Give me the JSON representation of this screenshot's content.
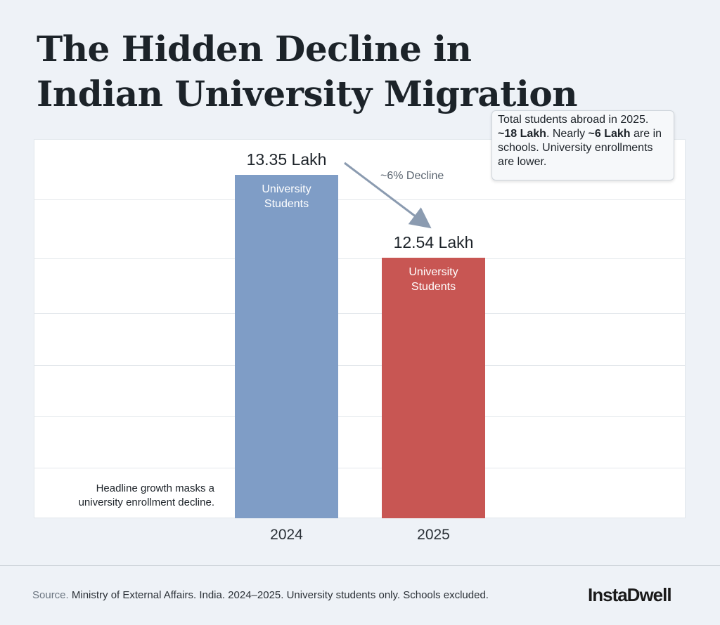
{
  "title": "The Hidden Decline in Indian University Migration",
  "annotation_box": {
    "pre": "Total students abroad in 2025. ",
    "b1": "~18 Lakh",
    "mid": ". Nearly ",
    "b2": "~6 Lakh",
    "post": " are in schools. University enrollments are lower."
  },
  "decline_label": "~6% Decline",
  "callout": "Headline growth masks a university enrollment decline.",
  "source_prefix": "Source.",
  "source": " Ministry of External Affairs. India. 2024–2025. University students only. Schools excluded.",
  "logo": "InstaDwell",
  "chart_data": {
    "type": "bar",
    "categories": [
      "2024",
      "2025"
    ],
    "values": [
      13.35,
      12.54
    ],
    "unit": "Lakh",
    "data_labels": [
      "13.35 Lakh",
      "12.54 Lakh"
    ],
    "bar_labels": [
      "University Students",
      "University Students"
    ],
    "colors": [
      "#7f9dc6",
      "#c85653"
    ],
    "ylim": [
      10,
      13.7
    ],
    "grid": true,
    "ytick_labels_shown": false
  }
}
